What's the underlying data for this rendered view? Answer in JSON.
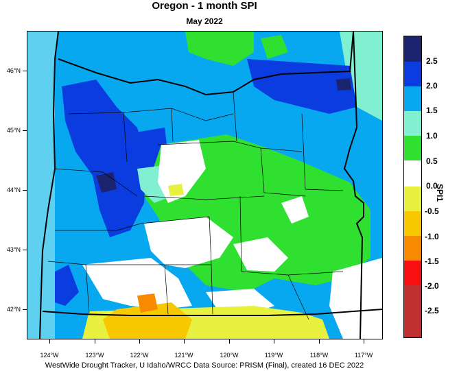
{
  "title": "Oregon - 1 month SPI",
  "subtitle": "May 2022",
  "footer": "WestWide Drought Tracker, U Idaho/WRCC Data Source: PRISM (Final), created 16 DEC 2022",
  "legend": {
    "title": "SPI1",
    "labels": [
      "2.5",
      "2.0",
      "1.5",
      "1.0",
      "0.5",
      "0.0",
      "-0.5",
      "-1.0",
      "-1.5",
      "-2.0",
      "-2.5"
    ],
    "colors": [
      "#1c2470",
      "#0a3ce0",
      "#08a8f0",
      "#80f0d0",
      "#30e030",
      "#ffffff",
      "#e8f040",
      "#f8c800",
      "#f88a00",
      "#f81010",
      "#c03030"
    ]
  },
  "map": {
    "lat_labels": [
      "46°N",
      "45°N",
      "44°N",
      "43°N",
      "42°N"
    ],
    "lon_labels": [
      "124°W",
      "123°W",
      "122°W",
      "121°W",
      "120°W",
      "119°W",
      "118°W",
      "117°W"
    ],
    "colors": {
      "ocean": "#5fd0f0",
      "very_wet": "#1c2470",
      "wet_severe": "#0a3ce0",
      "wet_moderate": "#08a8f0",
      "wet_mild": "#80f0d0",
      "wet_slight": "#30e030",
      "normal": "#ffffff",
      "dry_slight": "#e8f040",
      "dry_moderate": "#f8c800",
      "dry_severe": "#f88a00"
    }
  }
}
